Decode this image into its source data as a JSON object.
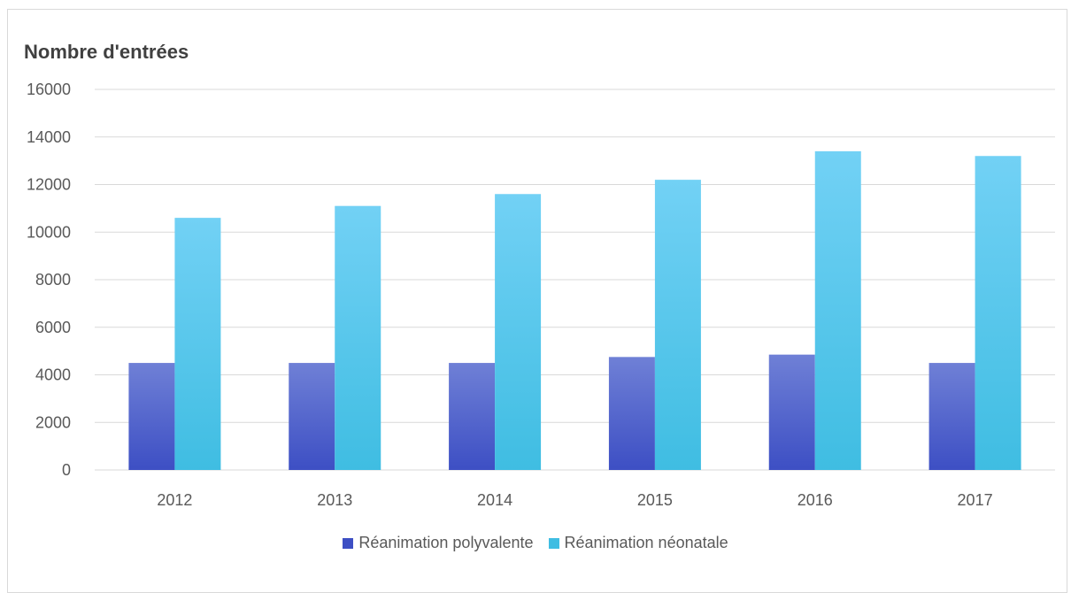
{
  "chart_data": {
    "type": "bar",
    "title": "Nombre d'entrées",
    "categories": [
      "2012",
      "2013",
      "2014",
      "2015",
      "2016",
      "2017"
    ],
    "series": [
      {
        "name": "Réanimation polyvalente",
        "values": [
          4500,
          4500,
          4500,
          4750,
          4850,
          4500
        ]
      },
      {
        "name": "Réanimation néonatale",
        "values": [
          10600,
          11100,
          11600,
          12200,
          13400,
          13200
        ]
      }
    ],
    "ylim": [
      0,
      16000
    ],
    "yticks": [
      "0",
      "2000",
      "4000",
      "6000",
      "8000",
      "10000",
      "12000",
      "14000",
      "16000"
    ],
    "grid": true,
    "legend": "bottom",
    "colors": {
      "series1_top": "#6f80d6",
      "series1_bottom": "#3d4fc4",
      "series2_top": "#72d1f5",
      "series2_bottom": "#3fbde2",
      "grid": "#d9d9d9",
      "text": "#595959"
    }
  }
}
